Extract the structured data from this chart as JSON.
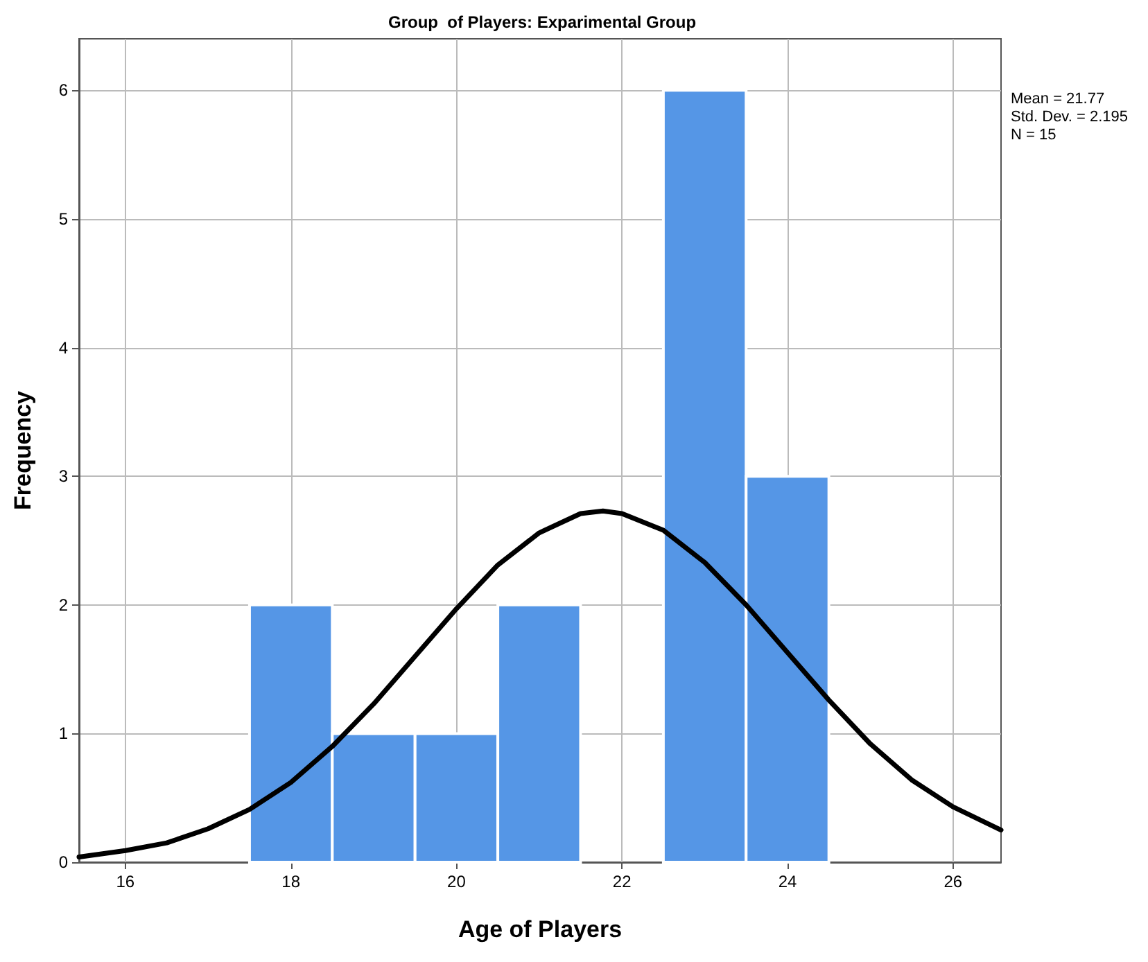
{
  "chart_data": {
    "type": "histogram",
    "title": "Group  of Players: Exparimental Group",
    "xlabel": "Age of Players",
    "ylabel": "Frequency",
    "bins": [
      17.5,
      18.5,
      19.5,
      20.5,
      21.5,
      22.5,
      23.5,
      24.5
    ],
    "values": [
      2,
      1,
      1,
      2,
      0,
      6,
      3
    ],
    "color": "#5596e6",
    "series": [
      {
        "type": "line",
        "color": "#000000",
        "x": [
          15.44,
          16,
          16.5,
          17,
          17.5,
          18,
          18.5,
          19,
          19.5,
          20,
          20.5,
          21,
          21.5,
          21.77,
          22,
          22.5,
          23,
          23.5,
          24,
          24.5,
          25,
          25.5,
          26,
          26.58
        ],
        "values": [
          0.04,
          0.09,
          0.15,
          0.26,
          0.41,
          0.62,
          0.9,
          1.23,
          1.6,
          1.97,
          2.31,
          2.56,
          2.71,
          2.73,
          2.71,
          2.58,
          2.33,
          2.0,
          1.63,
          1.26,
          0.92,
          0.64,
          0.43,
          0.25
        ]
      }
    ],
    "xlim": [
      15.44,
      26.58
    ],
    "xticks": [
      16,
      18,
      20,
      22,
      24,
      26
    ],
    "ylim": [
      0,
      6.4
    ],
    "yticks": [
      0,
      1,
      2,
      3,
      4,
      5,
      6
    ],
    "grid": true,
    "marker": "none",
    "annotations": [
      "Mean = 21.77",
      "Std. Dev. = 2.195",
      "N = 15"
    ]
  }
}
